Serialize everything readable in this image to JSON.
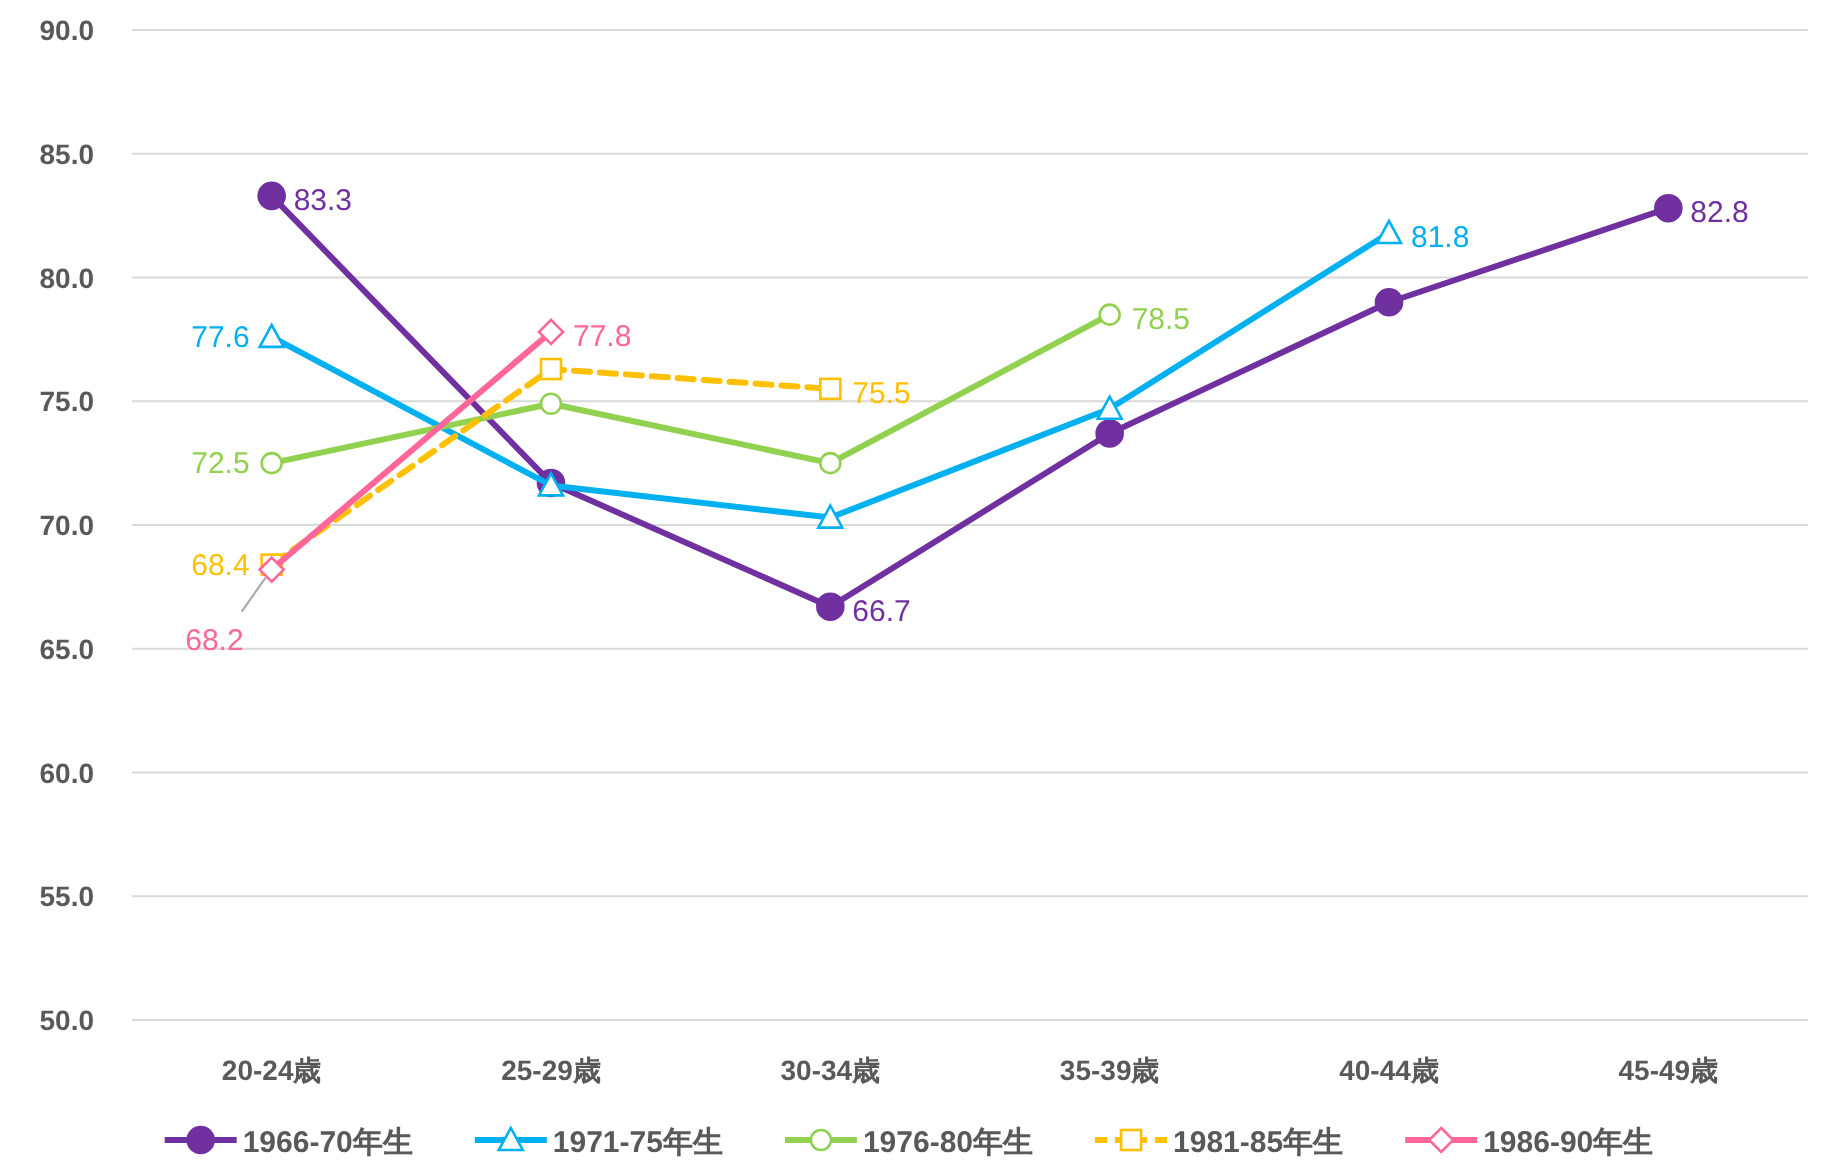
{
  "chart_data": {
    "type": "line",
    "categories": [
      "20-24歳",
      "25-29歳",
      "30-34歳",
      "35-39歳",
      "40-44歳",
      "45-49歳"
    ],
    "series": [
      {
        "name": "1966-70年生",
        "color": "#7030a0",
        "marker": "circle",
        "values": [
          83.3,
          71.7,
          66.7,
          73.7,
          79.0,
          82.8
        ],
        "value_labels": [
          "83.3",
          null,
          "66.7",
          null,
          null,
          "82.8"
        ]
      },
      {
        "name": "1971-75年生",
        "color": "#00b0f0",
        "marker": "triangle",
        "values": [
          77.6,
          71.6,
          70.3,
          74.7,
          81.8,
          null
        ],
        "value_labels": [
          "77.6",
          null,
          null,
          null,
          "81.8",
          null
        ]
      },
      {
        "name": "1976-80年生",
        "color": "#92d050",
        "marker": "circle",
        "values": [
          72.5,
          74.9,
          72.5,
          78.5,
          null,
          null
        ],
        "value_labels": [
          "72.5",
          null,
          null,
          "78.5",
          null,
          null
        ]
      },
      {
        "name": "1981-85年生",
        "color": "#ffc000",
        "marker": "square",
        "line_style": "dashed",
        "values": [
          68.4,
          76.3,
          75.5,
          null,
          null,
          null
        ],
        "value_labels": [
          "68.4",
          null,
          "75.5",
          null,
          null,
          null
        ]
      },
      {
        "name": "1986-90年生",
        "color": "#ff6699",
        "marker": "diamond",
        "values": [
          68.2,
          77.8,
          null,
          null,
          null,
          null
        ],
        "value_labels": [
          "68.2",
          "77.8",
          null,
          null,
          null,
          null
        ]
      }
    ],
    "ylim": [
      50,
      90
    ],
    "yticks": [
      {
        "value": 50,
        "label": "50.0"
      },
      {
        "value": 55,
        "label": "55.0"
      },
      {
        "value": 60,
        "label": "60.0"
      },
      {
        "value": 65,
        "label": "65.0"
      },
      {
        "value": 70,
        "label": "70.0"
      },
      {
        "value": 75,
        "label": "75.0"
      },
      {
        "value": 80,
        "label": "80.0"
      },
      {
        "value": 85,
        "label": "85.0"
      },
      {
        "value": 90,
        "label": "90.0"
      }
    ],
    "grid": "y",
    "legend": "bottom"
  }
}
